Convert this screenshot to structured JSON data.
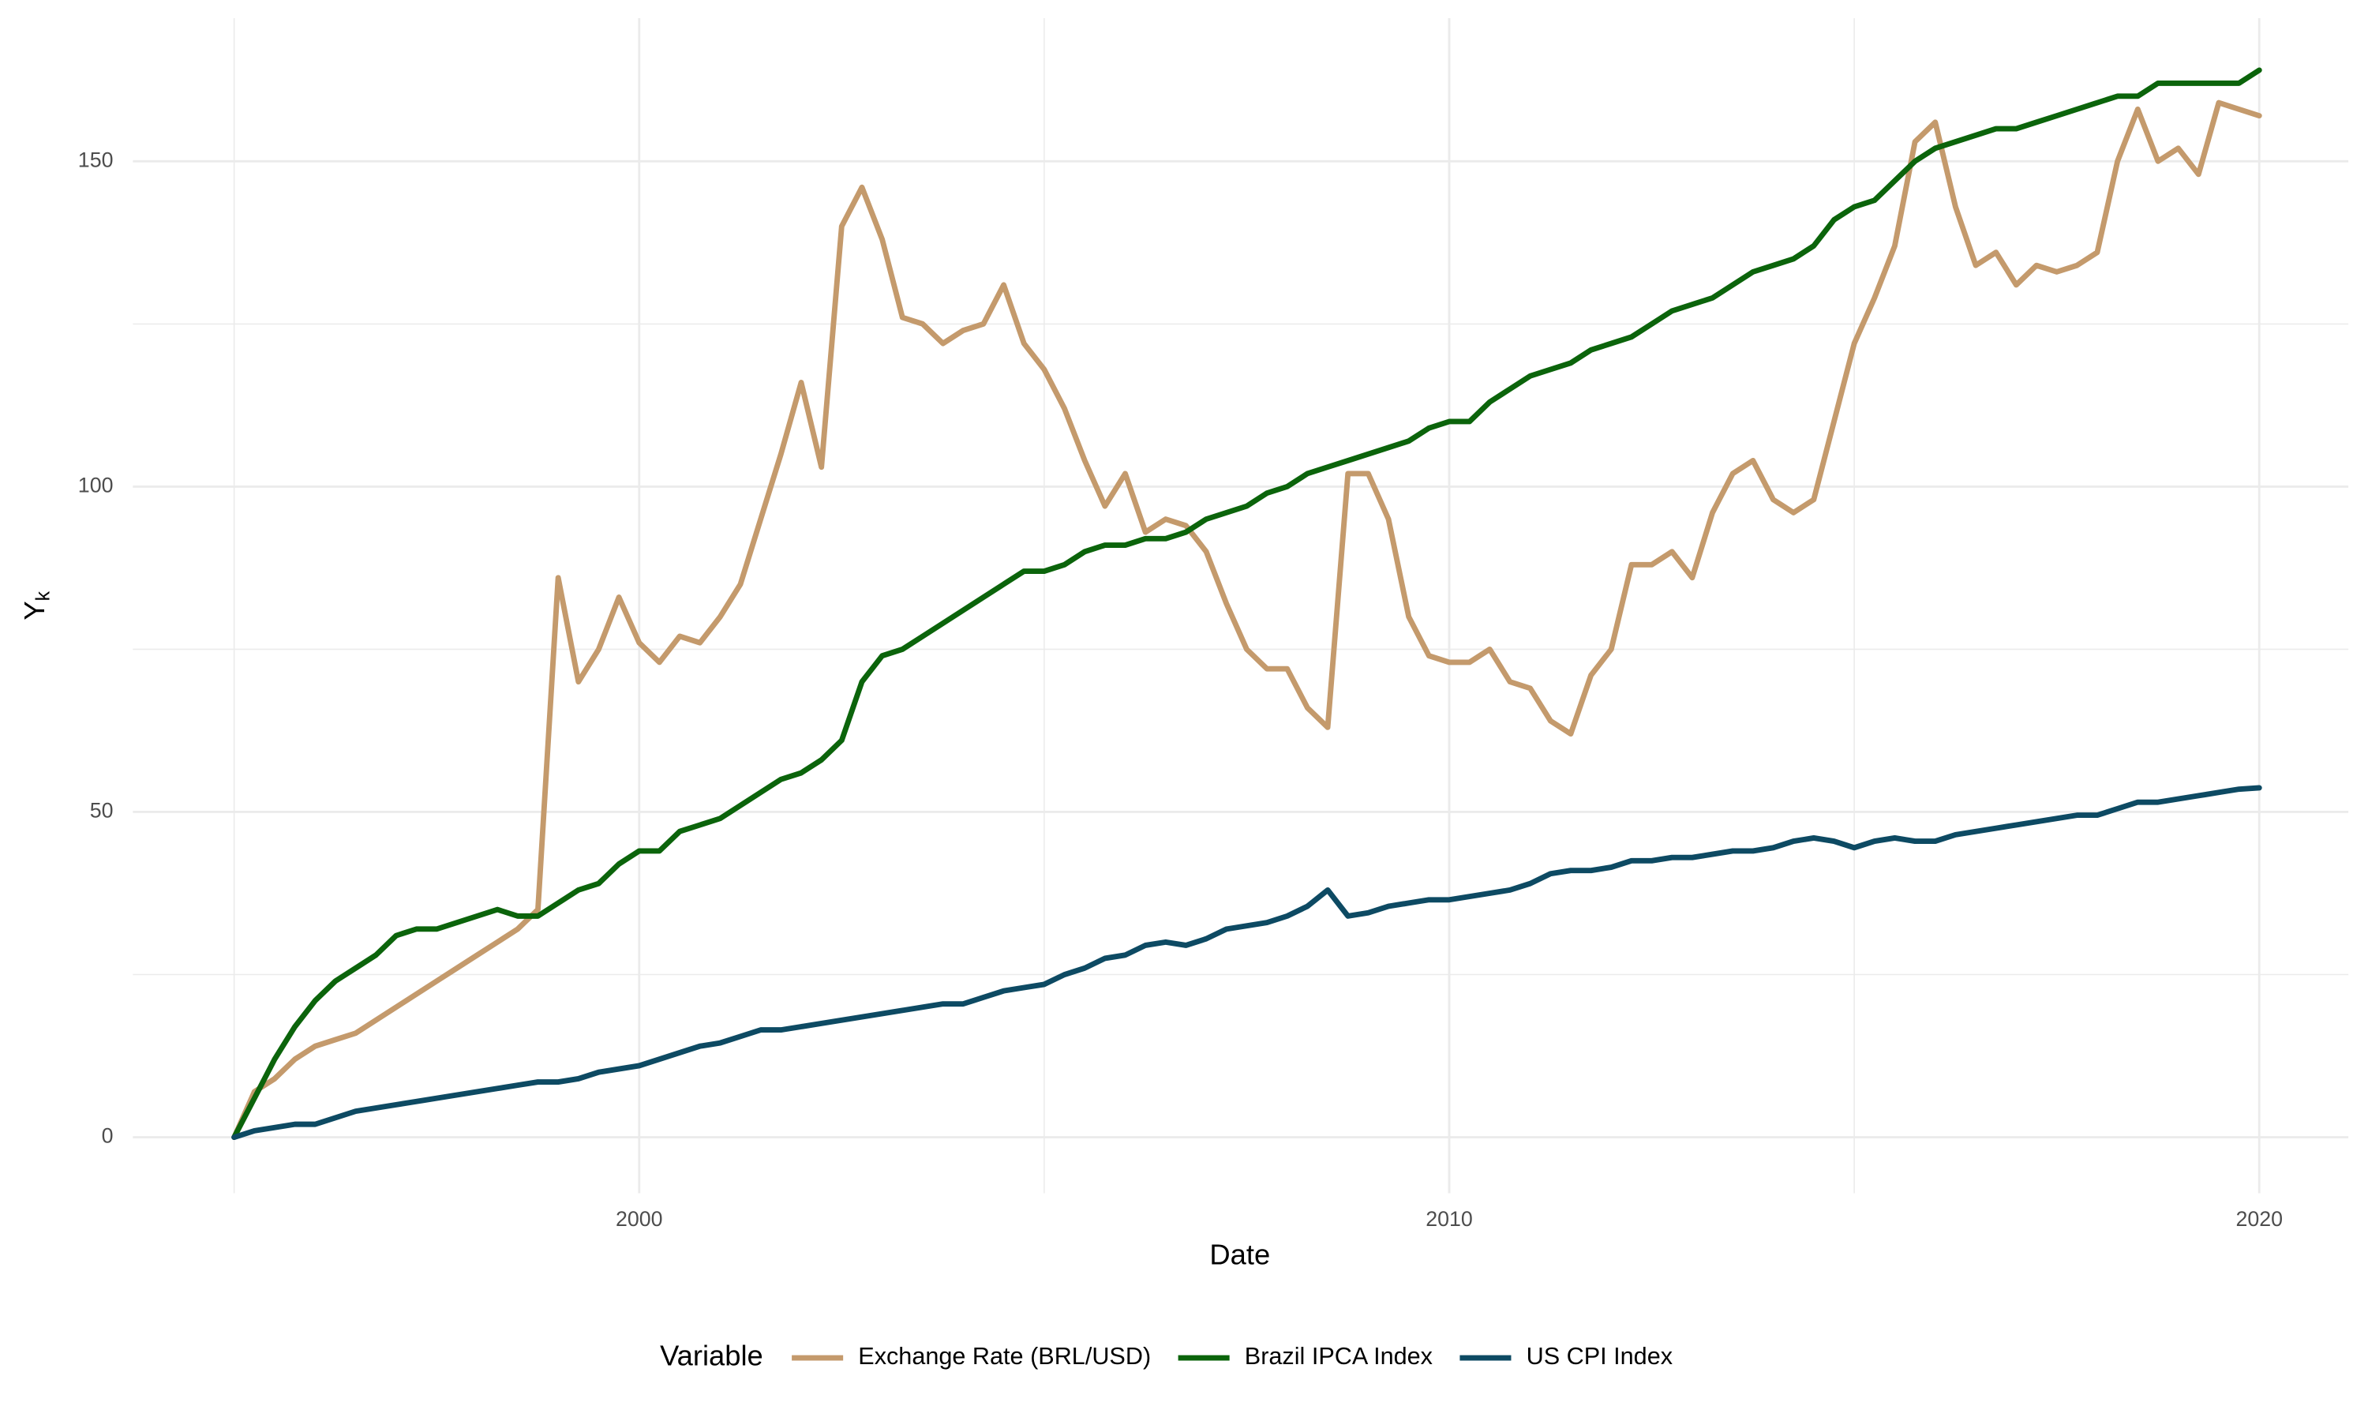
{
  "chart_data": {
    "type": "line",
    "xlabel": "Date",
    "ylabel": {
      "text": "Y",
      "subscript": "k"
    },
    "legend_title": "Variable",
    "legend_position": "bottom",
    "grid": true,
    "xlim": [
      1993.75,
      2021.1
    ],
    "ylim": [
      -8.6,
      172
    ],
    "xticks": [
      2000,
      2010,
      2020
    ],
    "yticks": [
      0,
      50,
      100,
      150
    ],
    "x_minor_grid": [
      1995,
      2005,
      2015
    ],
    "y_minor_grid": [
      25,
      75,
      125
    ],
    "x": [
      1995,
      1995.25,
      1995.5,
      1995.75,
      1996,
      1996.25,
      1996.5,
      1996.75,
      1997,
      1997.25,
      1997.5,
      1997.75,
      1998,
      1998.25,
      1998.5,
      1998.75,
      1999,
      1999.25,
      1999.5,
      1999.75,
      2000,
      2000.25,
      2000.5,
      2000.75,
      2001,
      2001.25,
      2001.5,
      2001.75,
      2002,
      2002.25,
      2002.5,
      2002.75,
      2003,
      2003.25,
      2003.5,
      2003.75,
      2004,
      2004.25,
      2004.5,
      2004.75,
      2005,
      2005.25,
      2005.5,
      2005.75,
      2006,
      2006.25,
      2006.5,
      2006.75,
      2007,
      2007.25,
      2007.5,
      2007.75,
      2008,
      2008.25,
      2008.5,
      2008.75,
      2009,
      2009.25,
      2009.5,
      2009.75,
      2010,
      2010.25,
      2010.5,
      2010.75,
      2011,
      2011.25,
      2011.5,
      2011.75,
      2012,
      2012.25,
      2012.5,
      2012.75,
      2013,
      2013.25,
      2013.5,
      2013.75,
      2014,
      2014.25,
      2014.5,
      2014.75,
      2015,
      2015.25,
      2015.5,
      2015.75,
      2016,
      2016.25,
      2016.5,
      2016.75,
      2017,
      2017.25,
      2017.5,
      2017.75,
      2018,
      2018.25,
      2018.5,
      2018.75,
      2019,
      2019.25,
      2019.5,
      2019.75,
      2020
    ],
    "series": [
      {
        "name": "Exchange Rate (BRL/USD)",
        "color": "#c49a6c",
        "values": [
          0,
          7,
          9,
          12,
          14,
          15,
          16,
          18,
          20,
          22,
          24,
          26,
          28,
          30,
          32,
          35,
          86,
          70,
          75,
          83,
          76,
          73,
          77,
          76,
          80,
          85,
          95,
          105,
          116,
          103,
          140,
          146,
          138,
          126,
          125,
          122,
          124,
          125,
          131,
          122,
          118,
          112,
          104,
          97,
          102,
          93,
          95,
          94,
          90,
          82,
          75,
          72,
          72,
          66,
          63,
          102,
          102,
          95,
          80,
          74,
          73,
          73,
          75,
          70,
          69,
          64,
          62,
          71,
          75,
          88,
          88,
          90,
          86,
          96,
          102,
          104,
          98,
          96,
          98,
          110,
          122,
          129,
          137,
          153,
          156,
          143,
          134,
          136,
          131,
          134,
          133,
          134,
          136,
          150,
          158,
          150,
          152,
          148,
          159,
          158,
          157
        ]
      },
      {
        "name": "Brazil IPCA Index",
        "color": "#0b640b",
        "values": [
          0,
          6,
          12,
          17,
          21,
          24,
          26,
          28,
          31,
          32,
          32,
          33,
          34,
          35,
          34,
          34,
          36,
          38,
          39,
          42,
          44,
          44,
          47,
          48,
          49,
          51,
          53,
          55,
          56,
          58,
          61,
          70,
          74,
          75,
          77,
          79,
          81,
          83,
          85,
          87,
          87,
          88,
          90,
          91,
          91,
          92,
          92,
          93,
          95,
          96,
          97,
          99,
          100,
          102,
          103,
          104,
          105,
          106,
          107,
          109,
          110,
          110,
          113,
          115,
          117,
          118,
          119,
          121,
          122,
          123,
          125,
          127,
          128,
          129,
          131,
          133,
          134,
          135,
          137,
          141,
          143,
          144,
          147,
          150,
          152,
          153,
          154,
          155,
          155,
          156,
          157,
          158,
          159,
          160,
          160,
          162,
          162,
          162,
          162,
          162,
          164
        ]
      },
      {
        "name": "US CPI Index",
        "color": "#0d4a63",
        "values": [
          0,
          1,
          1.5,
          2,
          2,
          3,
          4,
          4.5,
          5,
          5.5,
          6,
          6.5,
          7,
          7.5,
          8,
          8.5,
          8.5,
          9,
          10,
          10.5,
          11,
          12,
          13,
          14,
          14.5,
          15.5,
          16.5,
          16.5,
          17,
          17.5,
          18,
          18.5,
          19,
          19.5,
          20,
          20.5,
          20.5,
          21.5,
          22.5,
          23,
          23.5,
          25,
          26,
          27.5,
          28,
          29.5,
          30,
          29.5,
          30.5,
          32,
          32.5,
          33,
          34,
          35.5,
          38,
          34,
          34.5,
          35.5,
          36,
          36.5,
          36.5,
          37,
          37.5,
          38,
          39,
          40.5,
          41,
          41,
          41.5,
          42.5,
          42.5,
          43,
          43,
          43.5,
          44,
          44,
          44.5,
          45.5,
          46,
          45.5,
          44.5,
          45.5,
          46,
          45.5,
          45.5,
          46.5,
          47,
          47.5,
          48,
          48.5,
          49,
          49.5,
          49.5,
          50.5,
          51.5,
          51.5,
          52,
          52.5,
          53,
          53.5,
          53.7
        ]
      }
    ]
  }
}
